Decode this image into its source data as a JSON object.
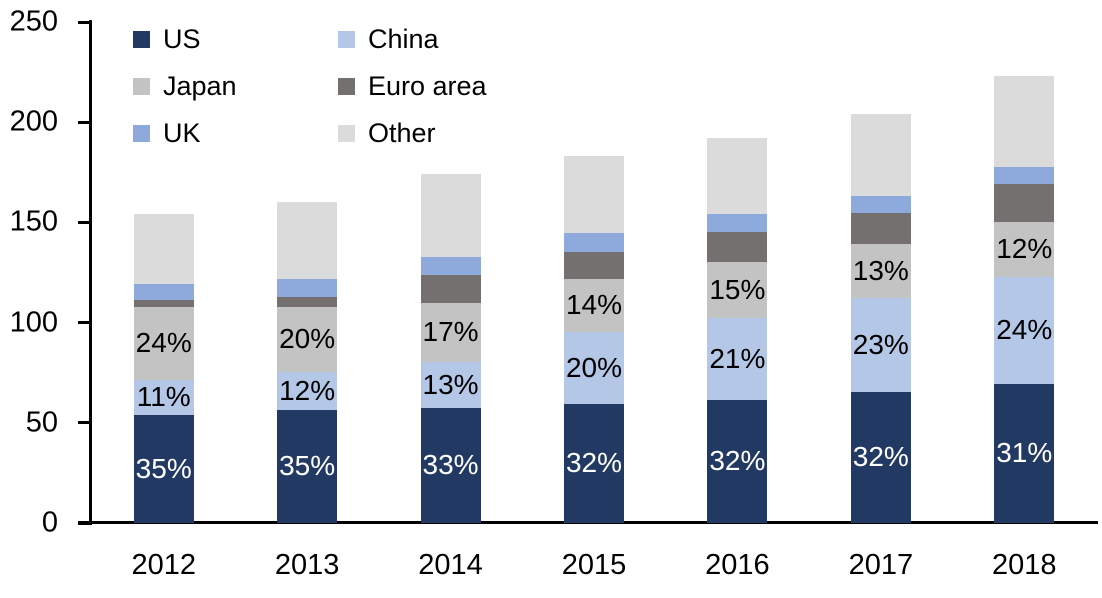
{
  "chart_data": {
    "type": "bar",
    "stacked": true,
    "title": "",
    "xlabel": "",
    "ylabel": "",
    "grid": false,
    "legend_position": "top-left",
    "categories": [
      "2012",
      "2013",
      "2014",
      "2015",
      "2016",
      "2017",
      "2018"
    ],
    "series": [
      {
        "name": "US",
        "color": "#223A63",
        "label_color": "#ffffff",
        "values": [
          54,
          56.5,
          57.5,
          59.5,
          61.5,
          65.5,
          69.5
        ],
        "labels": [
          "35%",
          "35%",
          "33%",
          "32%",
          "32%",
          "32%",
          "31%"
        ]
      },
      {
        "name": "China",
        "color": "#B4C7E7",
        "label_color": "#000000",
        "values": [
          17.5,
          19,
          23,
          36,
          41,
          47,
          53.5
        ],
        "labels": [
          "11%",
          "12%",
          "13%",
          "20%",
          "21%",
          "23%",
          "24%"
        ]
      },
      {
        "name": "Japan",
        "color": "#C3C3C3",
        "label_color": "#000000",
        "values": [
          36.5,
          32.5,
          29.5,
          26.5,
          28,
          26.5,
          27
        ],
        "labels": [
          "24%",
          "20%",
          "17%",
          "14%",
          "15%",
          "13%",
          "12%"
        ]
      },
      {
        "name": "Euro area",
        "color": "#757070",
        "label_color": null,
        "values": [
          3.5,
          5,
          14,
          13,
          14.5,
          15.5,
          19
        ],
        "labels": null
      },
      {
        "name": "UK",
        "color": "#8EA9DB",
        "label_color": null,
        "values": [
          8,
          9,
          9,
          9.5,
          9,
          8.5,
          8.5
        ],
        "labels": null
      },
      {
        "name": "Other",
        "color": "#DBDBDB",
        "label_color": null,
        "values": [
          34.5,
          38,
          41,
          38.5,
          38,
          41,
          45.5
        ],
        "labels": null
      }
    ],
    "approx_totals": [
      154,
      160,
      174,
      183,
      192,
      204,
      223
    ],
    "y_axis": {
      "min": 0,
      "max": 250,
      "step": 50,
      "tick_labels": [
        "0",
        "50",
        "100",
        "150",
        "200",
        "250"
      ]
    },
    "x_axis": {
      "tick_labels": [
        "2012",
        "2013",
        "2014",
        "2015",
        "2016",
        "2017",
        "2018"
      ]
    },
    "legend_columns": 2,
    "axis_color": "#000000",
    "text_color": "#000000"
  }
}
